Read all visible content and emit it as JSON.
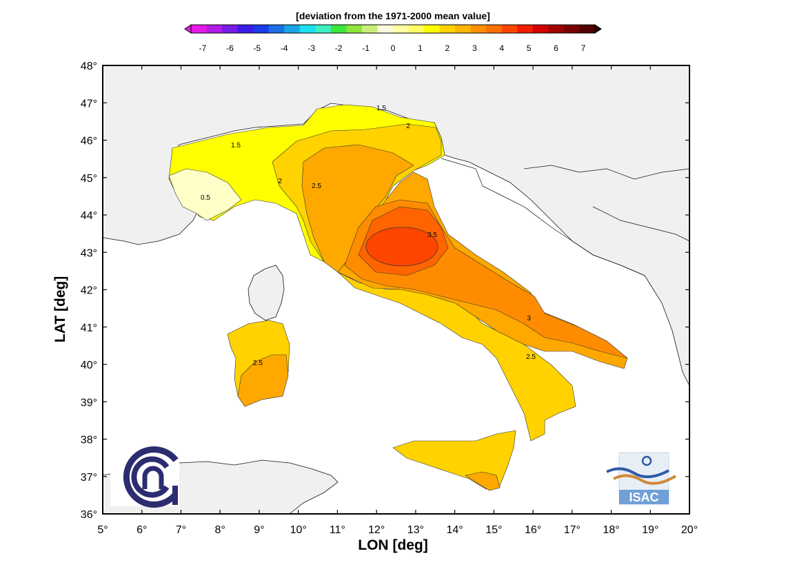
{
  "colorbar": {
    "title": "[deviation from the 1971-2000 mean value]",
    "ticks": [
      "-7",
      "-6",
      "-5",
      "-4",
      "-3",
      "-2",
      "-1",
      "0",
      "1",
      "2",
      "3",
      "4",
      "5",
      "6",
      "7"
    ],
    "colors": [
      "#e61be6",
      "#b21be6",
      "#7a1be6",
      "#3c1be6",
      "#1b3ce6",
      "#1b6ee6",
      "#1ba5e6",
      "#1be0f0",
      "#3cf0c0",
      "#3ce63c",
      "#8ce63c",
      "#c8f078",
      "#fafadc",
      "#ffffa0",
      "#ffff64",
      "#ffff00",
      "#ffd200",
      "#ffb400",
      "#ff9100",
      "#ff6e00",
      "#ff4600",
      "#f01e00",
      "#d20000",
      "#a00000",
      "#780000",
      "#500000"
    ]
  },
  "axes": {
    "xlabel": "LON [deg]",
    "ylabel": "LAT [deg]",
    "xticks": [
      "5",
      "6",
      "7",
      "8",
      "9",
      "10",
      "11",
      "12",
      "13",
      "14",
      "15",
      "16",
      "17",
      "18",
      "19",
      "20"
    ],
    "yticks": [
      "48",
      "47",
      "46",
      "45",
      "44",
      "43",
      "42",
      "41",
      "40",
      "39",
      "38",
      "37",
      "36"
    ],
    "degree": "°"
  },
  "map": {
    "contour_labels": [
      "1.5",
      "2",
      "1.5",
      "0.5",
      "2",
      "2.5",
      "3.5",
      "3",
      "2.5",
      "2.5"
    ],
    "fill_colors": {
      "land_outside": "#f0f0f0",
      "band_0_5": "#ffffc8",
      "band_1_5": "#ffff00",
      "band_2": "#ffd200",
      "band_2_5": "#ffa800",
      "band_3": "#ff8c00",
      "band_3_5": "#ff6400",
      "band_4": "#ff4600",
      "sea": "#ffffff"
    }
  },
  "logos": {
    "cnr": "CNR",
    "isac": "ISAC"
  }
}
